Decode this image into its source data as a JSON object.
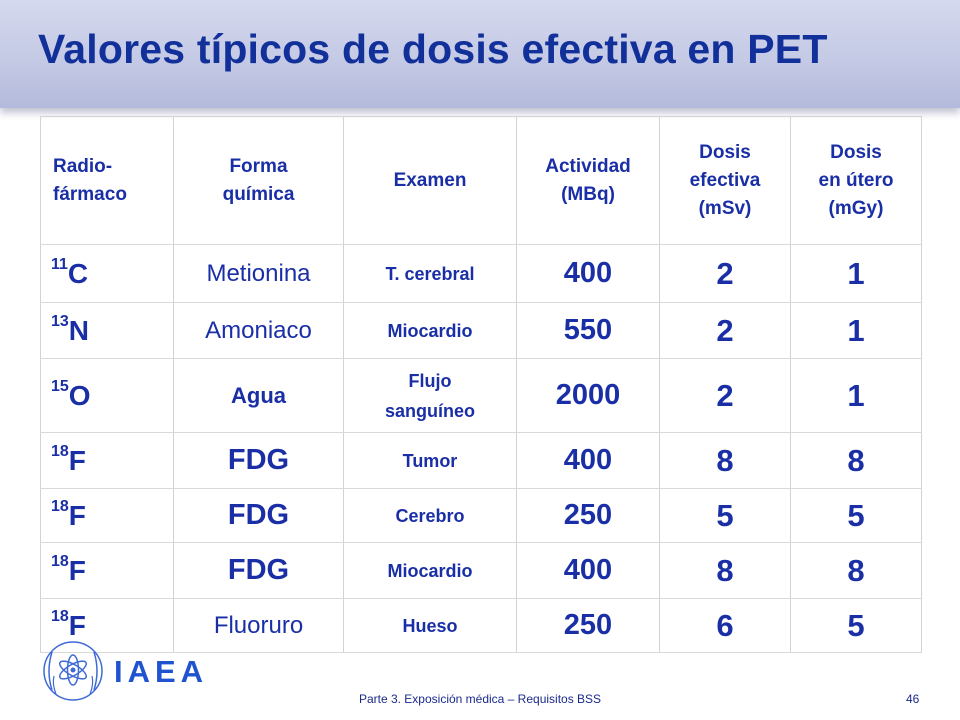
{
  "title": "Valores típicos de dosis efectiva en PET",
  "table": {
    "headers": {
      "radio": [
        "Radio-",
        "fármaco"
      ],
      "forma": [
        "Forma",
        "química"
      ],
      "examen": [
        "Examen"
      ],
      "actividad": [
        "Actividad",
        "(MBq)"
      ],
      "dosis_efectiva": [
        "Dosis",
        "efectiva",
        "(mSv)"
      ],
      "dosis_utero": [
        "Dosis",
        "en útero",
        "(mGy)"
      ]
    },
    "rows": [
      {
        "mass": "11",
        "element": "C",
        "forma": "Metionina",
        "examen": [
          "T. cerebral"
        ],
        "actividad": "400",
        "efectiva": "2",
        "utero": "1"
      },
      {
        "mass": "13",
        "element": "N",
        "forma": "Amoniaco",
        "examen": [
          "Miocardio"
        ],
        "actividad": "550",
        "efectiva": "2",
        "utero": "1"
      },
      {
        "mass": "15",
        "element": "O",
        "forma": "Agua",
        "examen": [
          "Flujo",
          "sanguíneo"
        ],
        "actividad": "2000",
        "efectiva": "2",
        "utero": "1"
      },
      {
        "mass": "18",
        "element": "F",
        "forma": "FDG",
        "examen": [
          "Tumor"
        ],
        "actividad": "400",
        "efectiva": "8",
        "utero": "8"
      },
      {
        "mass": "18",
        "element": "F",
        "forma": "FDG",
        "examen": [
          "Cerebro"
        ],
        "actividad": "250",
        "efectiva": "5",
        "utero": "5"
      },
      {
        "mass": "18",
        "element": "F",
        "forma": "FDG",
        "examen": [
          "Miocardio"
        ],
        "actividad": "400",
        "efectiva": "8",
        "utero": "8"
      },
      {
        "mass": "18",
        "element": "F",
        "forma": "Fluoruro",
        "examen": [
          "Hueso"
        ],
        "actividad": "250",
        "efectiva": "6",
        "utero": "5"
      }
    ]
  },
  "footer": {
    "brand": "IAEA",
    "text": "Parte 3. Exposición médica – Requisitos BSS",
    "page": "46"
  },
  "colors": {
    "text_blue": "#1a2fa6",
    "title_blue": "#12309a",
    "brand_blue": "#1f53d0",
    "band": "#c3c8e4"
  },
  "icons": {
    "logo": "iaea-atom-logo-icon"
  }
}
